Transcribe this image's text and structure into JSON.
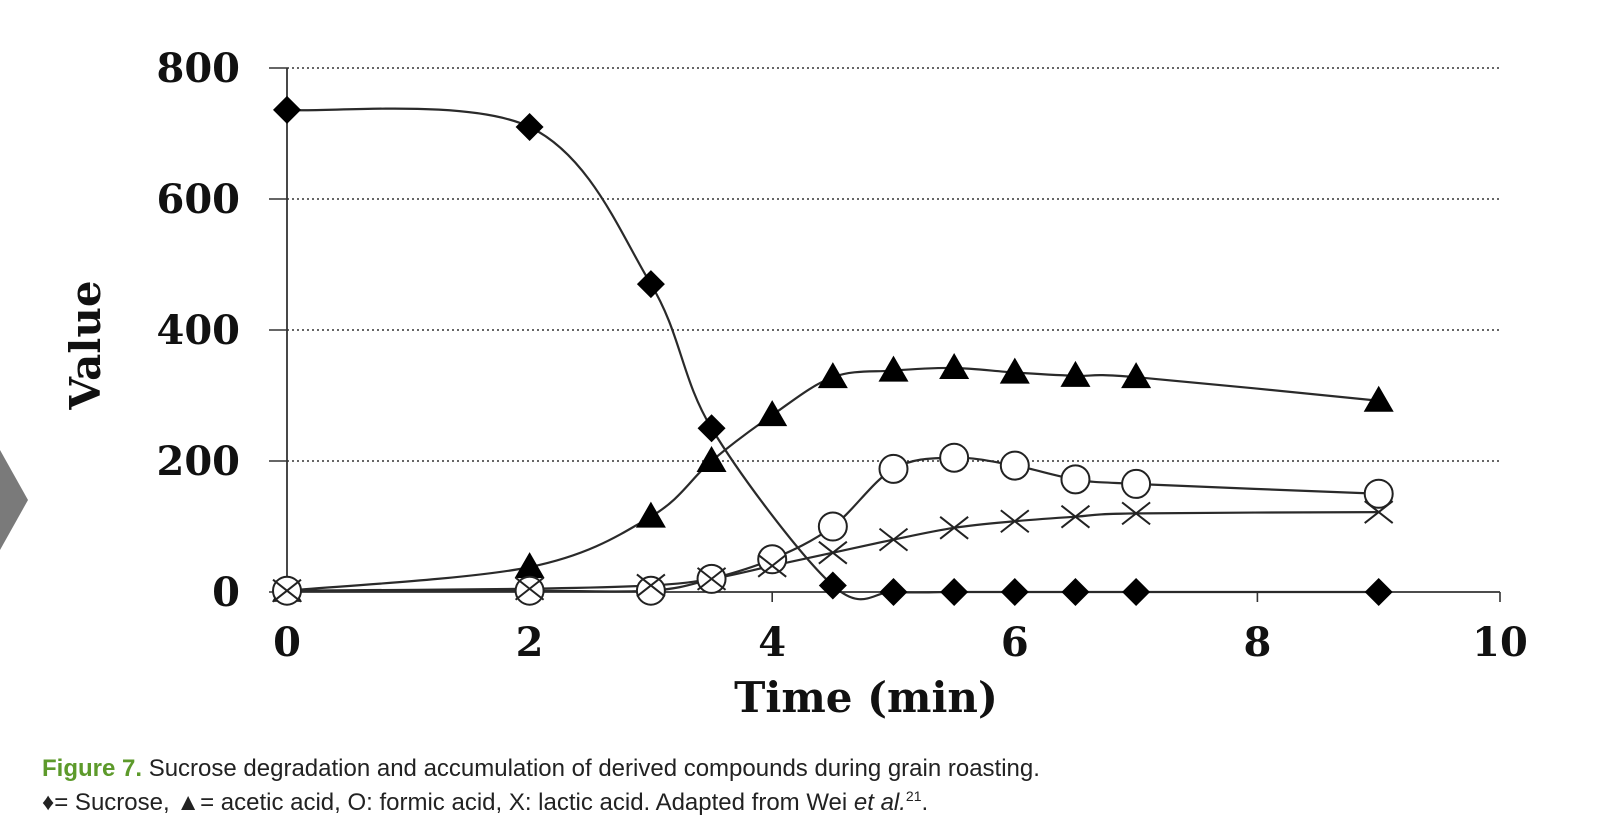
{
  "chart_data": {
    "type": "line",
    "xlabel": "Time (min)",
    "ylabel": "Value",
    "xlim": [
      0,
      10
    ],
    "ylim": [
      0,
      800
    ],
    "xticks": [
      "0",
      "2",
      "4",
      "6",
      "8",
      "10"
    ],
    "yticks": [
      "0",
      "200",
      "400",
      "600",
      "800"
    ],
    "grid": "horizontal dotted",
    "series": [
      {
        "key": "sucrose",
        "marker": "filled-diamond",
        "x": [
          0,
          2,
          3,
          3.5,
          4.5,
          5,
          5.5,
          6,
          6.5,
          7,
          9
        ],
        "y": [
          736,
          710,
          470,
          250,
          10,
          0,
          0,
          0,
          0,
          0,
          0
        ]
      },
      {
        "key": "acetic",
        "marker": "filled-triangle",
        "x": [
          0,
          2,
          3,
          3.5,
          4,
          4.5,
          5,
          5.5,
          6,
          6.5,
          7,
          9
        ],
        "y": [
          2,
          38,
          115,
          200,
          270,
          328,
          338,
          342,
          335,
          330,
          328,
          292
        ]
      },
      {
        "key": "formic",
        "marker": "open-circle",
        "x": [
          0,
          2,
          3,
          3.5,
          4,
          4.5,
          5,
          5.5,
          6,
          6.5,
          7,
          9
        ],
        "y": [
          2,
          2,
          2,
          20,
          50,
          100,
          188,
          205,
          193,
          172,
          165,
          150
        ]
      },
      {
        "key": "lactic",
        "marker": "x-mark",
        "x": [
          0,
          2,
          3,
          3.5,
          4,
          4.5,
          5,
          5.5,
          6,
          6.5,
          7,
          9
        ],
        "y": [
          2,
          5,
          10,
          20,
          40,
          60,
          80,
          98,
          108,
          115,
          120,
          122
        ]
      }
    ]
  },
  "caption": {
    "label": "Figure 7.",
    "text": " Sucrose degradation and accumulation of derived compounds during grain roasting.",
    "line2_pre": "♦= Sucrose, ▲= acetic acid, O: formic acid, X: lactic acid. Adapted from Wei ",
    "line2_ital": "et al.",
    "line2_sup": "21",
    "line2_post": "."
  }
}
